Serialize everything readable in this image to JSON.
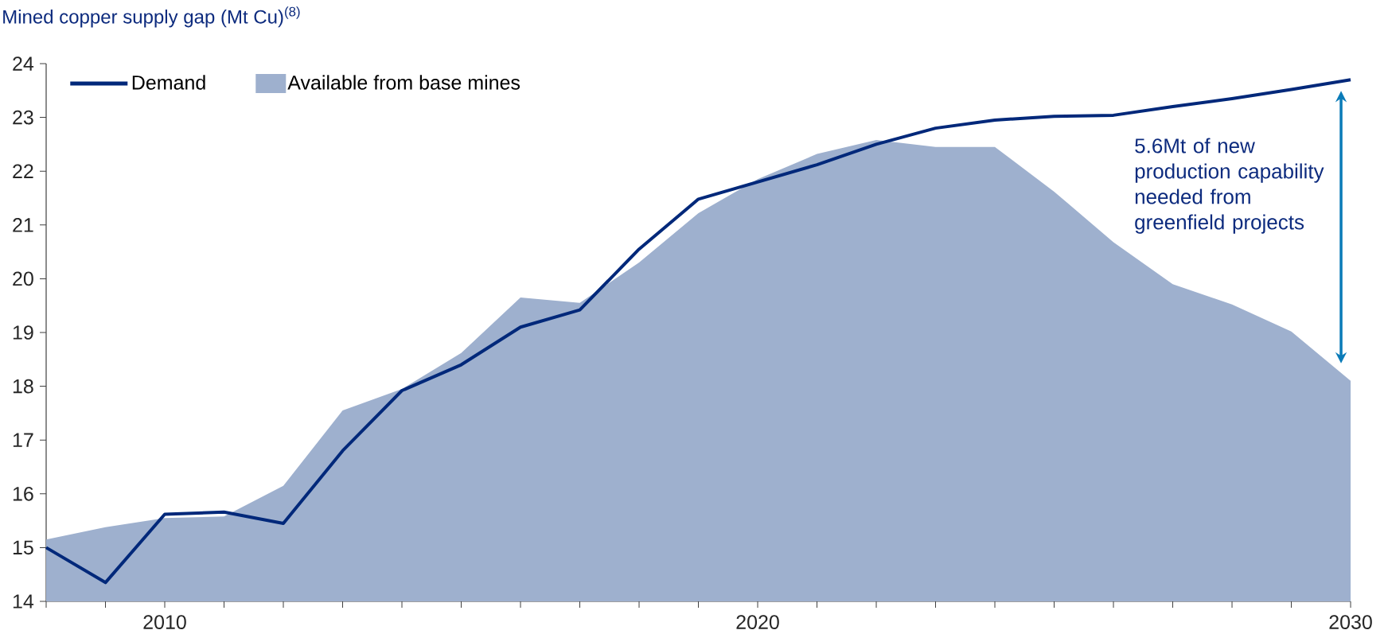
{
  "chart_data": {
    "type": "area",
    "title": "Mined copper supply gap (Mt Cu)$^{(8)}$",
    "x": [
      2008,
      2009,
      2010,
      2011,
      2012,
      2013,
      2014,
      2015,
      2016,
      2017,
      2018,
      2019,
      2020,
      2021,
      2022,
      2023,
      2024,
      2025,
      2026,
      2027,
      2028,
      2029,
      2030
    ],
    "series": [
      {
        "name": "Demand",
        "type": "line",
        "color": "#00287a",
        "values": [
          15.0,
          14.35,
          15.62,
          15.66,
          15.45,
          16.8,
          17.92,
          18.4,
          19.1,
          19.42,
          20.55,
          21.48,
          21.8,
          22.12,
          22.5,
          22.8,
          22.95,
          23.02,
          23.04,
          23.2,
          23.35,
          23.52,
          23.7
        ]
      },
      {
        "name": "Available from base mines",
        "color": "#9eb0ce",
        "values": [
          15.15,
          15.38,
          15.55,
          15.58,
          16.15,
          17.55,
          17.95,
          18.62,
          19.65,
          19.55,
          20.3,
          21.22,
          21.85,
          22.32,
          22.58,
          22.45,
          22.45,
          21.62,
          20.68,
          19.9,
          19.52,
          19.02,
          18.1
        ]
      }
    ],
    "annotations": [
      "5.6Mt of new production capability needed from greenfield projects"
    ],
    "xlim": [
      2008,
      2030
    ],
    "xticks": [
      {
        "value": 2008,
        "label": null
      },
      {
        "value": 2009,
        "label": null
      },
      2010,
      {
        "value": 2011,
        "label": null
      },
      {
        "value": 2012,
        "label": null
      },
      {
        "value": 2013,
        "label": null
      },
      {
        "value": 2014,
        "label": null
      },
      {
        "value": 2015,
        "label": null
      },
      {
        "value": 2016,
        "label": null
      },
      {
        "value": 2017,
        "label": null
      },
      {
        "value": 2018,
        "label": null
      },
      {
        "value": 2019,
        "label": null
      },
      2020,
      {
        "value": 2021,
        "label": null
      },
      {
        "value": 2022,
        "label": null
      },
      {
        "value": 2023,
        "label": null
      },
      {
        "value": 2024,
        "label": null
      },
      {
        "value": 2025,
        "label": null
      },
      {
        "value": 2026,
        "label": null
      },
      {
        "value": 2027,
        "label": null
      },
      {
        "value": 2028,
        "label": null
      },
      {
        "value": 2029,
        "label": null
      },
      2030
    ],
    "ylim": [
      14,
      24
    ],
    "yticks": [
      14,
      15,
      16,
      17,
      18,
      19,
      20,
      21,
      22,
      23,
      24
    ],
    "grid": false,
    "legend": "top left",
    "marker": "none",
    "line_style": "solid"
  }
}
